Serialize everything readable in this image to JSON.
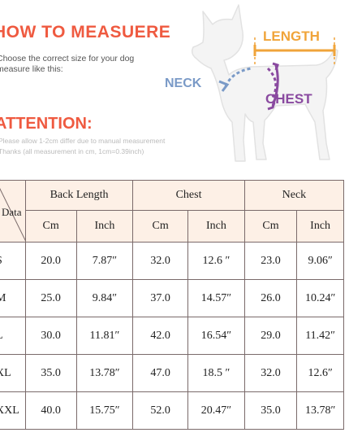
{
  "header": {
    "title": "HOW TO MEASUERE",
    "intro_lines": [
      "Choose the correct size for your dog",
      "measure like this:"
    ],
    "attention": "ATTENTION:",
    "note_lines": [
      "Please allow 1-2cm differ due to manual measurement",
      "Thanks (all measurement in cm, 1cm=0.39inch)"
    ]
  },
  "diagram": {
    "length_label": "LENGTH",
    "neck_label": "NECK",
    "chest_label": "CHEST",
    "colors": {
      "length": "#f0a43a",
      "neck": "#7a9ac7",
      "chest": "#8a4aa0",
      "title": "#ef5a40"
    }
  },
  "table": {
    "corner_label": "Data",
    "groups": [
      "Back Length",
      "Chest",
      "Neck"
    ],
    "units": [
      "Cm",
      "Inch",
      "Cm",
      "Inch",
      "Cm",
      "Inch"
    ],
    "rows": [
      {
        "size": "S",
        "cells": [
          "20.0",
          "7.87″",
          "32.0",
          "12.6 ″",
          "23.0",
          "9.06″"
        ]
      },
      {
        "size": "M",
        "cells": [
          "25.0",
          "9.84″",
          "37.0",
          "14.57″",
          "26.0",
          "10.24″"
        ]
      },
      {
        "size": "L",
        "cells": [
          "30.0",
          "11.81″",
          "42.0",
          "16.54″",
          "29.0",
          "11.42″"
        ]
      },
      {
        "size": "XL",
        "cells": [
          "35.0",
          "13.78″",
          "47.0",
          "18.5 ″",
          "32.0",
          "12.6″"
        ]
      },
      {
        "size": "XXL",
        "cells": [
          "40.0",
          "15.75″",
          "52.0",
          "20.47″",
          "35.0",
          "13.78″"
        ]
      }
    ]
  }
}
